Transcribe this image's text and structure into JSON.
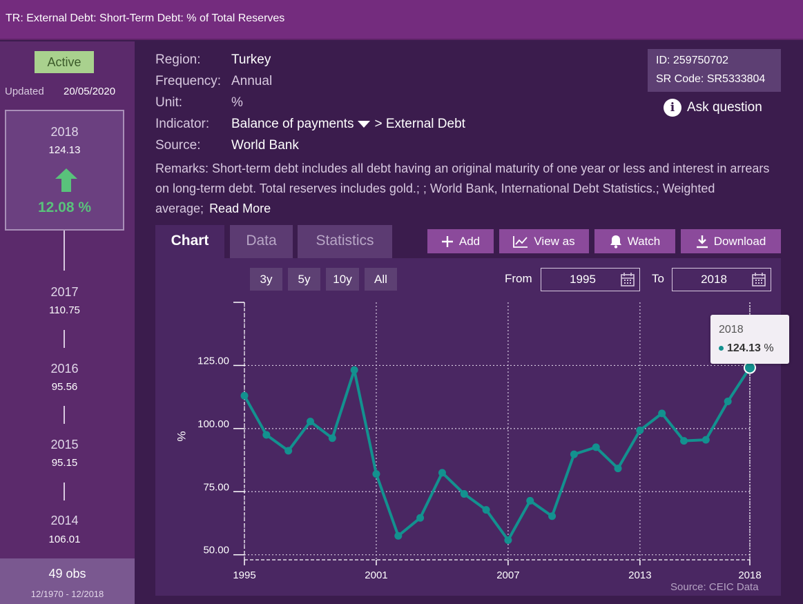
{
  "header": {
    "title": "TR: External Debt: Short-Term Debt: % of Total Reserves"
  },
  "sidebar": {
    "status": "Active",
    "updated_label": "Updated",
    "updated_date": "20/05/2020",
    "latest": {
      "year": "2018",
      "value": "124.13",
      "change": "12.08 %"
    },
    "timeline": [
      {
        "year": "2017",
        "value": "110.75"
      },
      {
        "year": "2016",
        "value": "95.56"
      },
      {
        "year": "2015",
        "value": "95.15"
      },
      {
        "year": "2014",
        "value": "106.01"
      }
    ],
    "obs": "49 obs",
    "range": "12/1970 - 12/2018"
  },
  "meta": {
    "region_label": "Region:",
    "region": "Turkey",
    "frequency_label": "Frequency:",
    "frequency": "Annual",
    "unit_label": "Unit:",
    "unit": "%",
    "indicator_label": "Indicator:",
    "indicator_primary": "Balance of payments",
    "indicator_secondary": "> External Debt",
    "source_label": "Source:",
    "source": "World Bank",
    "remarks": "Remarks: Short-term debt includes all debt having an original maturity of one year or less and interest in arrears on long-term debt. Total reserves includes gold.; ; World Bank, International Debt Statistics.; Weighted average;",
    "read_more": "Read More"
  },
  "idbox": {
    "id": "ID: 259750702",
    "sr_code": "SR Code: SR5333804",
    "ask": "Ask question"
  },
  "tabs": {
    "chart": "Chart",
    "data": "Data",
    "statistics": "Statistics"
  },
  "toolbar": {
    "add": "Add",
    "view_as": "View as",
    "watch": "Watch",
    "download": "Download"
  },
  "range": {
    "btn_3y": "3y",
    "btn_5y": "5y",
    "btn_10y": "10y",
    "btn_all": "All",
    "from_label": "From",
    "from": "1995",
    "to_label": "To",
    "to": "2018"
  },
  "source_note": "Source: CEIC Data",
  "tooltip": {
    "year": "2018",
    "value": "124.13",
    "unit": "%"
  },
  "colors": {
    "accent": "#742c7e",
    "line": "#13918f",
    "positive": "#59c27b"
  },
  "chart_data": {
    "type": "line",
    "title": "",
    "ylabel": "%",
    "xlabel": "",
    "x_ticks": [
      "1995",
      "2001",
      "2007",
      "2013",
      "2018"
    ],
    "y_ticks": [
      "50.00",
      "75.00",
      "100.00",
      "125.00"
    ],
    "ylim": [
      48,
      150
    ],
    "series": [
      {
        "name": "Short-Term Debt: % of Total Reserves",
        "x": [
          1995,
          1996,
          1997,
          1998,
          1999,
          2000,
          2001,
          2002,
          2003,
          2004,
          2005,
          2006,
          2007,
          2008,
          2009,
          2010,
          2011,
          2012,
          2013,
          2014,
          2015,
          2016,
          2017,
          2018
        ],
        "values": [
          113,
          97.5,
          91.2,
          102.8,
          96.2,
          123.2,
          82,
          57.5,
          64.6,
          82.5,
          74.1,
          67.8,
          55.8,
          71.4,
          65.3,
          89.8,
          92.6,
          84.2,
          99.3,
          106.01,
          95.15,
          95.56,
          110.75,
          124.13
        ]
      }
    ]
  }
}
